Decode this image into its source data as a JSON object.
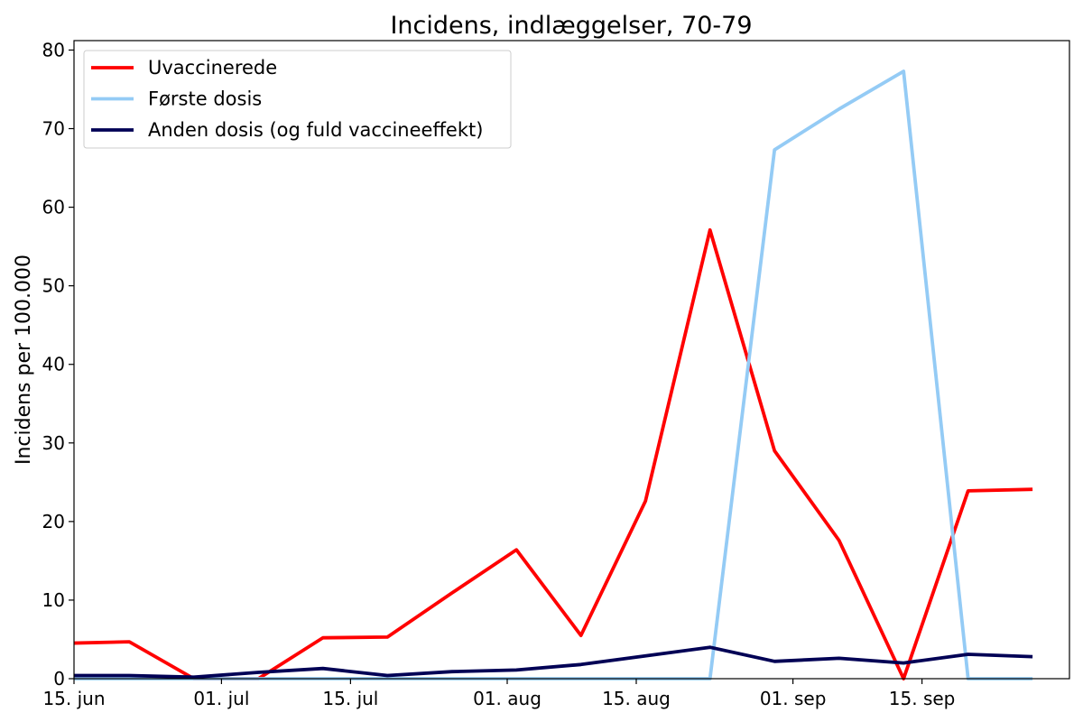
{
  "chart_data": {
    "type": "line",
    "title": "Incidens, indlæggelser, 70-79",
    "xlabel": "",
    "ylabel": "Incidens per 100.000",
    "ylim": [
      0,
      81.2
    ],
    "yticks": [
      0,
      10,
      20,
      30,
      40,
      50,
      60,
      70,
      80
    ],
    "xlim": [
      "2021-06-15",
      "2021-10-01"
    ],
    "xticks": [
      {
        "date": "2021-06-15",
        "label": "15. jun"
      },
      {
        "date": "2021-07-01",
        "label": "01. jul"
      },
      {
        "date": "2021-07-15",
        "label": "15. jul"
      },
      {
        "date": "2021-08-01",
        "label": "01. aug"
      },
      {
        "date": "2021-08-15",
        "label": "15. aug"
      },
      {
        "date": "2021-09-01",
        "label": "01. sep"
      },
      {
        "date": "2021-09-15",
        "label": "15. sep"
      }
    ],
    "grid": false,
    "legend_position": "top-left",
    "x": [
      "2021-06-14",
      "2021-06-21",
      "2021-06-28",
      "2021-07-05",
      "2021-07-12",
      "2021-07-19",
      "2021-07-26",
      "2021-08-02",
      "2021-08-09",
      "2021-08-16",
      "2021-08-23",
      "2021-08-30",
      "2021-09-06",
      "2021-09-13",
      "2021-09-20",
      "2021-09-27"
    ],
    "series": [
      {
        "name": "Uvaccinerede",
        "color": "#ff0000",
        "values": [
          4.5,
          4.7,
          0,
          0,
          5.2,
          5.3,
          10.9,
          16.4,
          5.5,
          22.6,
          57.1,
          29.0,
          17.6,
          0,
          23.9,
          24.1
        ]
      },
      {
        "name": "Første dosis",
        "color": "#94cbf5",
        "values": [
          0,
          0,
          0,
          0,
          0,
          0,
          0,
          0,
          0,
          0,
          0,
          67.3,
          72.5,
          77.3,
          0,
          0
        ]
      },
      {
        "name": "Anden dosis (og fuld vaccineeffekt)",
        "color": "#000055",
        "values": [
          0.4,
          0.4,
          0.2,
          0.8,
          1.3,
          0.4,
          0.9,
          1.1,
          1.8,
          2.9,
          4.0,
          2.2,
          2.6,
          2.0,
          3.1,
          2.8
        ]
      }
    ]
  }
}
